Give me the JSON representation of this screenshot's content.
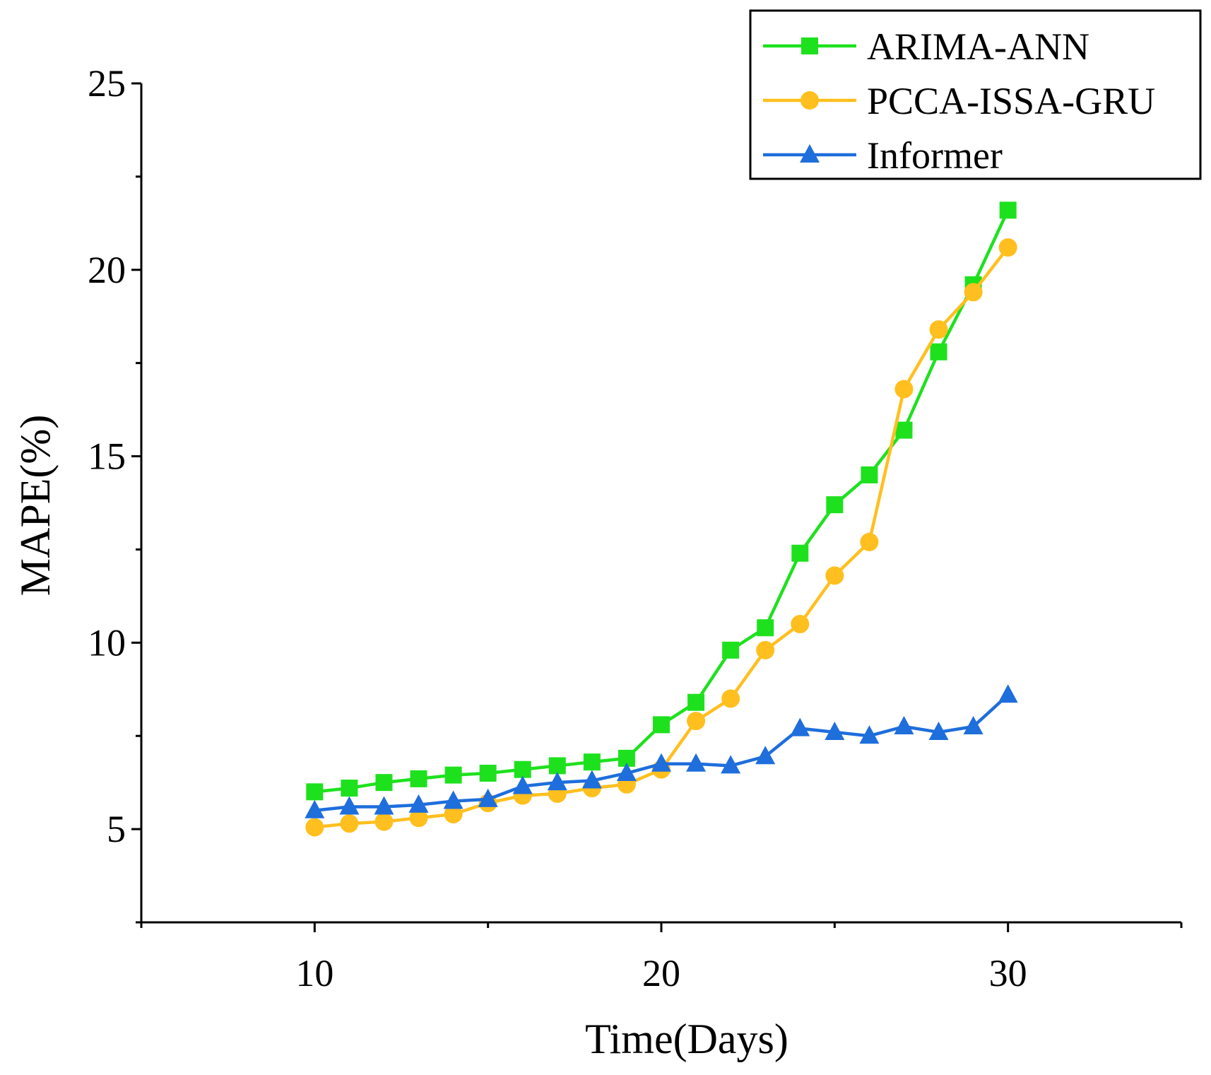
{
  "chart_data": {
    "type": "line",
    "title": "",
    "xlabel": "Time(Days)",
    "ylabel": "MAPE(%)",
    "xlim": [
      5,
      35
    ],
    "ylim": [
      2.5,
      25
    ],
    "xticks": [
      10,
      20,
      30
    ],
    "yticks": [
      5,
      10,
      15,
      20,
      25
    ],
    "grid": false,
    "legend_position": "top-right",
    "x": [
      10,
      11,
      12,
      13,
      14,
      15,
      16,
      17,
      18,
      19,
      20,
      21,
      22,
      23,
      24,
      25,
      26,
      27,
      28,
      29,
      30
    ],
    "series": [
      {
        "name": "ARIMA-ANN",
        "color": "#1ee11e",
        "marker": "square",
        "values": [
          6.0,
          6.1,
          6.25,
          6.35,
          6.45,
          6.5,
          6.6,
          6.7,
          6.8,
          6.9,
          7.8,
          8.4,
          9.8,
          10.4,
          12.4,
          13.7,
          14.5,
          15.7,
          17.8,
          19.6,
          21.6
        ]
      },
      {
        "name": "PCCA-ISSA-GRU",
        "color": "#ffbf1e",
        "marker": "circle",
        "values": [
          5.05,
          5.15,
          5.2,
          5.3,
          5.4,
          5.7,
          5.9,
          5.95,
          6.1,
          6.2,
          6.6,
          7.9,
          8.5,
          9.8,
          10.5,
          11.8,
          12.7,
          16.8,
          18.4,
          19.4,
          20.6
        ]
      },
      {
        "name": "Informer",
        "color": "#1e6edc",
        "marker": "triangle",
        "values": [
          5.5,
          5.6,
          5.6,
          5.65,
          5.75,
          5.8,
          6.15,
          6.25,
          6.3,
          6.5,
          6.75,
          6.75,
          6.7,
          6.95,
          7.7,
          7.6,
          7.5,
          7.75,
          7.6,
          7.75,
          8.6
        ]
      }
    ]
  }
}
